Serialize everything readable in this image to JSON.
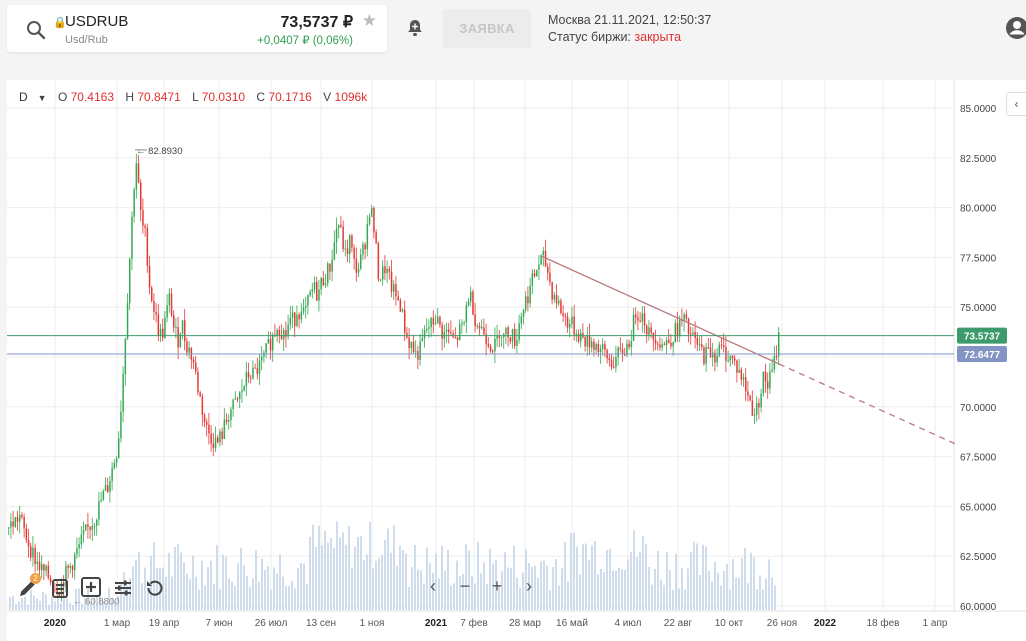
{
  "header": {
    "ticker": "USDRUB",
    "ticker_sub": "Usd/Rub",
    "price": "73,5737 ₽",
    "change": "+0,0407 ₽ (0,06%)",
    "order_button": "ЗАЯВКА",
    "datetime": "Москва 21.11.2021, 12:50:37",
    "exchange_status_label": "Статус биржи:",
    "exchange_status_value": "закрыта"
  },
  "ohlc": {
    "period": "D",
    "o_label": "O",
    "o_value": "70.4163",
    "h_label": "H",
    "h_value": "70.8471",
    "l_label": "L",
    "l_value": "70.0310",
    "c_label": "C",
    "c_value": "70.1716",
    "v_label": "V",
    "v_value": "1096k"
  },
  "chart_data": {
    "type": "candlestick",
    "y_ticks": [
      "85.0000",
      "82.5000",
      "80.0000",
      "77.5000",
      "75.0000",
      "72.5000",
      "70.0000",
      "67.5000",
      "65.0000",
      "62.5000",
      "60.0000"
    ],
    "ylim": [
      59.8,
      85.4
    ],
    "x_ticks": [
      "2020",
      "1 мар",
      "19 апр",
      "7 июн",
      "26 июл",
      "13 сен",
      "1 ноя",
      "2021",
      "7 фев",
      "28 мар",
      "16 май",
      "4 июл",
      "22 авг",
      "10 окт",
      "26 ноя",
      "2022",
      "18 фев",
      "1 апр"
    ],
    "price_lines": [
      {
        "label": "73.5737",
        "value": 73.5737,
        "color": "#3d9b6b"
      },
      {
        "label": "72.6477",
        "value": 72.6477,
        "color": "#8194c4"
      }
    ],
    "max_annotation": {
      "label": "82.8930",
      "value": 82.893
    },
    "min_annotation": {
      "label": "60.8800",
      "value": 60.88
    },
    "trendline": {
      "from": {
        "date": "2021-04-02",
        "value": 77.55
      },
      "to": {
        "date": "2021-11-22",
        "value": 72.15
      },
      "extension_to": {
        "date": "2022-04-20",
        "value": 68.1
      }
    },
    "price_path": [
      [
        0,
        63.9
      ],
      [
        6,
        64.2
      ],
      [
        12,
        64.5
      ],
      [
        16,
        63.8
      ],
      [
        22,
        63.0
      ],
      [
        28,
        62.3
      ],
      [
        34,
        61.8
      ],
      [
        40,
        61.5
      ],
      [
        46,
        61.1
      ],
      [
        52,
        60.9
      ],
      [
        58,
        61.6
      ],
      [
        64,
        62.1
      ],
      [
        70,
        62.8
      ],
      [
        76,
        63.5
      ],
      [
        82,
        64.0
      ],
      [
        88,
        64.5
      ],
      [
        94,
        65.4
      ],
      [
        100,
        66.0
      ],
      [
        106,
        67.2
      ],
      [
        110,
        68.0
      ],
      [
        114,
        70.5
      ],
      [
        118,
        74.0
      ],
      [
        122,
        77.5
      ],
      [
        126,
        81.0
      ],
      [
        129,
        82.5
      ],
      [
        132,
        80.0
      ],
      [
        135,
        79.0
      ],
      [
        138,
        78.5
      ],
      [
        142,
        76.0
      ],
      [
        146,
        75.0
      ],
      [
        150,
        74.0
      ],
      [
        154,
        73.5
      ],
      [
        158,
        74.5
      ],
      [
        162,
        75.5
      ],
      [
        166,
        74.0
      ],
      [
        170,
        73.3
      ],
      [
        174,
        74.3
      ],
      [
        178,
        73.2
      ],
      [
        182,
        72.8
      ],
      [
        186,
        72.2
      ],
      [
        190,
        71.0
      ],
      [
        194,
        70.0
      ],
      [
        198,
        69.0
      ],
      [
        202,
        68.6
      ],
      [
        206,
        68.3
      ],
      [
        210,
        68.2
      ],
      [
        214,
        68.6
      ],
      [
        218,
        69.2
      ],
      [
        222,
        69.8
      ],
      [
        226,
        70.0
      ],
      [
        230,
        70.3
      ],
      [
        234,
        70.8
      ],
      [
        238,
        71.3
      ],
      [
        242,
        71.7
      ],
      [
        246,
        71.6
      ],
      [
        250,
        71.9
      ],
      [
        254,
        72.2
      ],
      [
        258,
        72.7
      ],
      [
        262,
        73.2
      ],
      [
        266,
        73.6
      ],
      [
        270,
        74.2
      ],
      [
        274,
        73.8
      ],
      [
        278,
        73.6
      ],
      [
        282,
        74.4
      ],
      [
        286,
        74.3
      ],
      [
        290,
        75.0
      ],
      [
        294,
        74.5
      ],
      [
        298,
        74.8
      ],
      [
        302,
        75.5
      ],
      [
        306,
        76.0
      ],
      [
        310,
        75.6
      ],
      [
        314,
        76.3
      ],
      [
        318,
        76.6
      ],
      [
        322,
        77.0
      ],
      [
        326,
        78.0
      ],
      [
        330,
        79.4
      ],
      [
        334,
        78.5
      ],
      [
        338,
        77.5
      ],
      [
        342,
        78.4
      ],
      [
        346,
        77.2
      ],
      [
        350,
        76.9
      ],
      [
        354,
        77.5
      ],
      [
        358,
        78.5
      ],
      [
        362,
        80.0
      ],
      [
        365,
        79.5
      ],
      [
        368,
        78.0
      ],
      [
        371,
        76.5
      ],
      [
        374,
        76.6
      ],
      [
        377,
        77.0
      ],
      [
        380,
        76.6
      ],
      [
        384,
        76.0
      ],
      [
        388,
        75.5
      ],
      [
        392,
        75.3
      ],
      [
        396,
        74.2
      ],
      [
        400,
        73.3
      ],
      [
        404,
        73.1
      ],
      [
        408,
        72.6
      ],
      [
        412,
        72.8
      ],
      [
        416,
        73.5
      ],
      [
        420,
        74.0
      ],
      [
        424,
        74.1
      ],
      [
        428,
        74.5
      ],
      [
        432,
        74.0
      ],
      [
        436,
        73.6
      ],
      [
        440,
        73.8
      ],
      [
        444,
        73.4
      ],
      [
        448,
        73.3
      ],
      [
        452,
        73.8
      ],
      [
        456,
        74.0
      ],
      [
        460,
        75.6
      ],
      [
        464,
        75.4
      ],
      [
        468,
        74.3
      ],
      [
        472,
        74.0
      ],
      [
        476,
        73.8
      ],
      [
        480,
        73.4
      ],
      [
        484,
        73.1
      ],
      [
        488,
        73.0
      ],
      [
        492,
        74.0
      ],
      [
        496,
        73.5
      ],
      [
        500,
        73.8
      ],
      [
        504,
        73.6
      ],
      [
        508,
        73.3
      ],
      [
        512,
        74.4
      ],
      [
        516,
        75.1
      ],
      [
        520,
        75.6
      ],
      [
        524,
        76.2
      ],
      [
        528,
        76.8
      ],
      [
        532,
        77.3
      ],
      [
        536,
        77.4
      ],
      [
        540,
        76.8
      ],
      [
        544,
        75.8
      ],
      [
        548,
        75.5
      ],
      [
        552,
        75.0
      ],
      [
        556,
        74.5
      ],
      [
        560,
        74.3
      ],
      [
        564,
        74.1
      ],
      [
        568,
        73.8
      ],
      [
        572,
        73.6
      ],
      [
        576,
        73.4
      ],
      [
        580,
        73.2
      ],
      [
        584,
        73.3
      ],
      [
        588,
        73.1
      ],
      [
        592,
        72.9
      ],
      [
        596,
        72.7
      ],
      [
        600,
        72.4
      ],
      [
        604,
        72.2
      ],
      [
        608,
        72.4
      ],
      [
        612,
        72.6
      ],
      [
        616,
        72.8
      ],
      [
        620,
        73.1
      ],
      [
        624,
        73.7
      ],
      [
        628,
        74.8
      ],
      [
        632,
        74.7
      ],
      [
        636,
        74.5
      ],
      [
        640,
        73.8
      ],
      [
        644,
        73.4
      ],
      [
        648,
        73.6
      ],
      [
        652,
        73.3
      ],
      [
        656,
        73.1
      ],
      [
        660,
        73.3
      ],
      [
        664,
        73.5
      ],
      [
        668,
        73.8
      ],
      [
        672,
        74.1
      ],
      [
        676,
        74.4
      ],
      [
        680,
        73.8
      ],
      [
        684,
        73.5
      ],
      [
        688,
        73.2
      ],
      [
        692,
        72.9
      ],
      [
        696,
        72.6
      ],
      [
        700,
        72.7
      ],
      [
        704,
        72.8
      ],
      [
        708,
        72.6
      ],
      [
        712,
        72.9
      ],
      [
        716,
        72.8
      ],
      [
        720,
        72.6
      ],
      [
        724,
        72.4
      ],
      [
        728,
        72.1
      ],
      [
        732,
        71.7
      ],
      [
        736,
        71.2
      ],
      [
        740,
        70.6
      ],
      [
        744,
        70.0
      ],
      [
        748,
        69.6
      ],
      [
        752,
        70.6
      ],
      [
        756,
        71.5
      ],
      [
        760,
        71.1
      ],
      [
        764,
        71.7
      ],
      [
        768,
        72.5
      ],
      [
        770,
        73.5
      ],
      [
        772,
        73.57
      ]
    ],
    "volume_note": "daily volume bars"
  },
  "icons": {
    "collapse": "‹",
    "nav_prev": "‹",
    "nav_next": "›",
    "zoom_out": "−",
    "zoom_in": "+",
    "tools_badge": "2"
  },
  "colors": {
    "up": "#34a853",
    "down": "#e53935",
    "volume": "#cfdcec",
    "grid": "#eeeeee",
    "trend": "#b97a7e"
  }
}
